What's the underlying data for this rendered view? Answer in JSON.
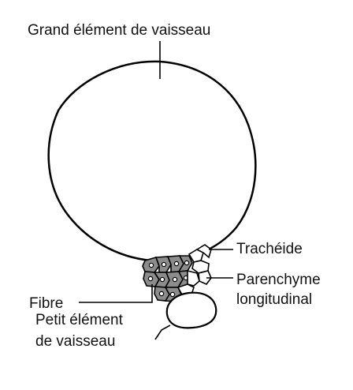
{
  "labels": {
    "large_vessel": "Grand élément de vaisseau",
    "tracheid": "Trachéide",
    "parenchyma_line1": "Parenchyme",
    "parenchyma_line2": "longitudinal",
    "fibre": "Fibre",
    "small_vessel_line1": "Petit élément",
    "small_vessel_line2": "de vaisseau"
  },
  "colors": {
    "stroke": "#000000",
    "fibre_fill": "#8c8c8c",
    "cell_fill": "#ffffff"
  }
}
